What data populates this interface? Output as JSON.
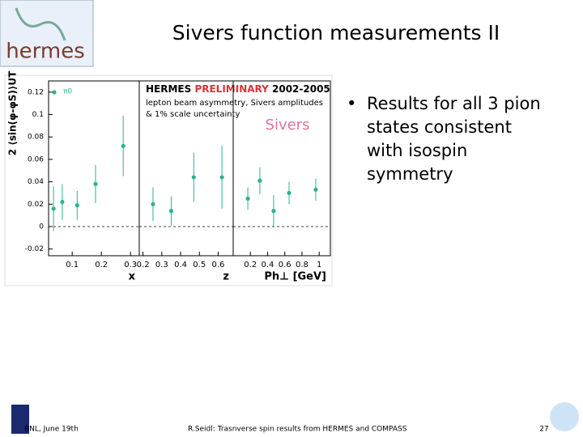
{
  "header": {
    "title": "Sivers function measurements II",
    "logo": "hermes"
  },
  "bullets": [
    "Results for all 3 pion states consistent with isospin symmetry"
  ],
  "footer": {
    "left": "BNL, June 19th",
    "center": "R.Seidl: Trasnverse spin results from HERMES and COMPASS",
    "page": "27"
  },
  "figure": {
    "ylabel": "2 ⟨sin(φ-φS)⟩UT",
    "legend": "π0",
    "heading": [
      "HERMES",
      "PRELIMINARY",
      "2002-2005"
    ],
    "notes": [
      "lepton beam asymmetry, Sivers amplitudes",
      "& 1% scale uncertainty"
    ],
    "label": "Sivers",
    "color": "#2bb38f"
  },
  "chart_data": [
    {
      "type": "scatter",
      "xlabel": "x",
      "x": [
        0.036,
        0.066,
        0.117,
        0.18,
        0.275
      ],
      "values": [
        0.016,
        0.022,
        0.019,
        0.038,
        0.072
      ],
      "errors": [
        0.02,
        0.016,
        0.013,
        0.017,
        0.027
      ],
      "xlim": [
        0.019,
        0.33
      ],
      "xticks": [
        0.1,
        0.2,
        0.3
      ],
      "ylim": [
        -0.026,
        0.13
      ],
      "yticks": [
        -0.02,
        0,
        0.02,
        0.04,
        0.06,
        0.08,
        0.1,
        0.12
      ]
    },
    {
      "type": "scatter",
      "xlabel": "z",
      "x": [
        0.253,
        0.35,
        0.47,
        0.62
      ],
      "values": [
        0.02,
        0.014,
        0.044,
        0.044
      ],
      "errors": [
        0.015,
        0.013,
        0.022,
        0.028
      ],
      "xlim": [
        0.18,
        0.68
      ],
      "xticks": [
        0.2,
        0.3,
        0.4,
        0.5,
        0.6
      ],
      "ylim": [
        -0.026,
        0.13
      ]
    },
    {
      "type": "scatter",
      "xlabel": "Ph⊥ [GeV]",
      "x": [
        0.17,
        0.31,
        0.47,
        0.65,
        0.96
      ],
      "values": [
        0.025,
        0.041,
        0.014,
        0.03,
        0.033
      ],
      "errors": [
        0.01,
        0.012,
        0.014,
        0.01,
        0.01
      ],
      "xlim": [
        0,
        1.13
      ],
      "xticks": [
        0.2,
        0.4,
        0.6,
        0.8,
        1
      ],
      "ylim": [
        -0.026,
        0.13
      ]
    }
  ]
}
